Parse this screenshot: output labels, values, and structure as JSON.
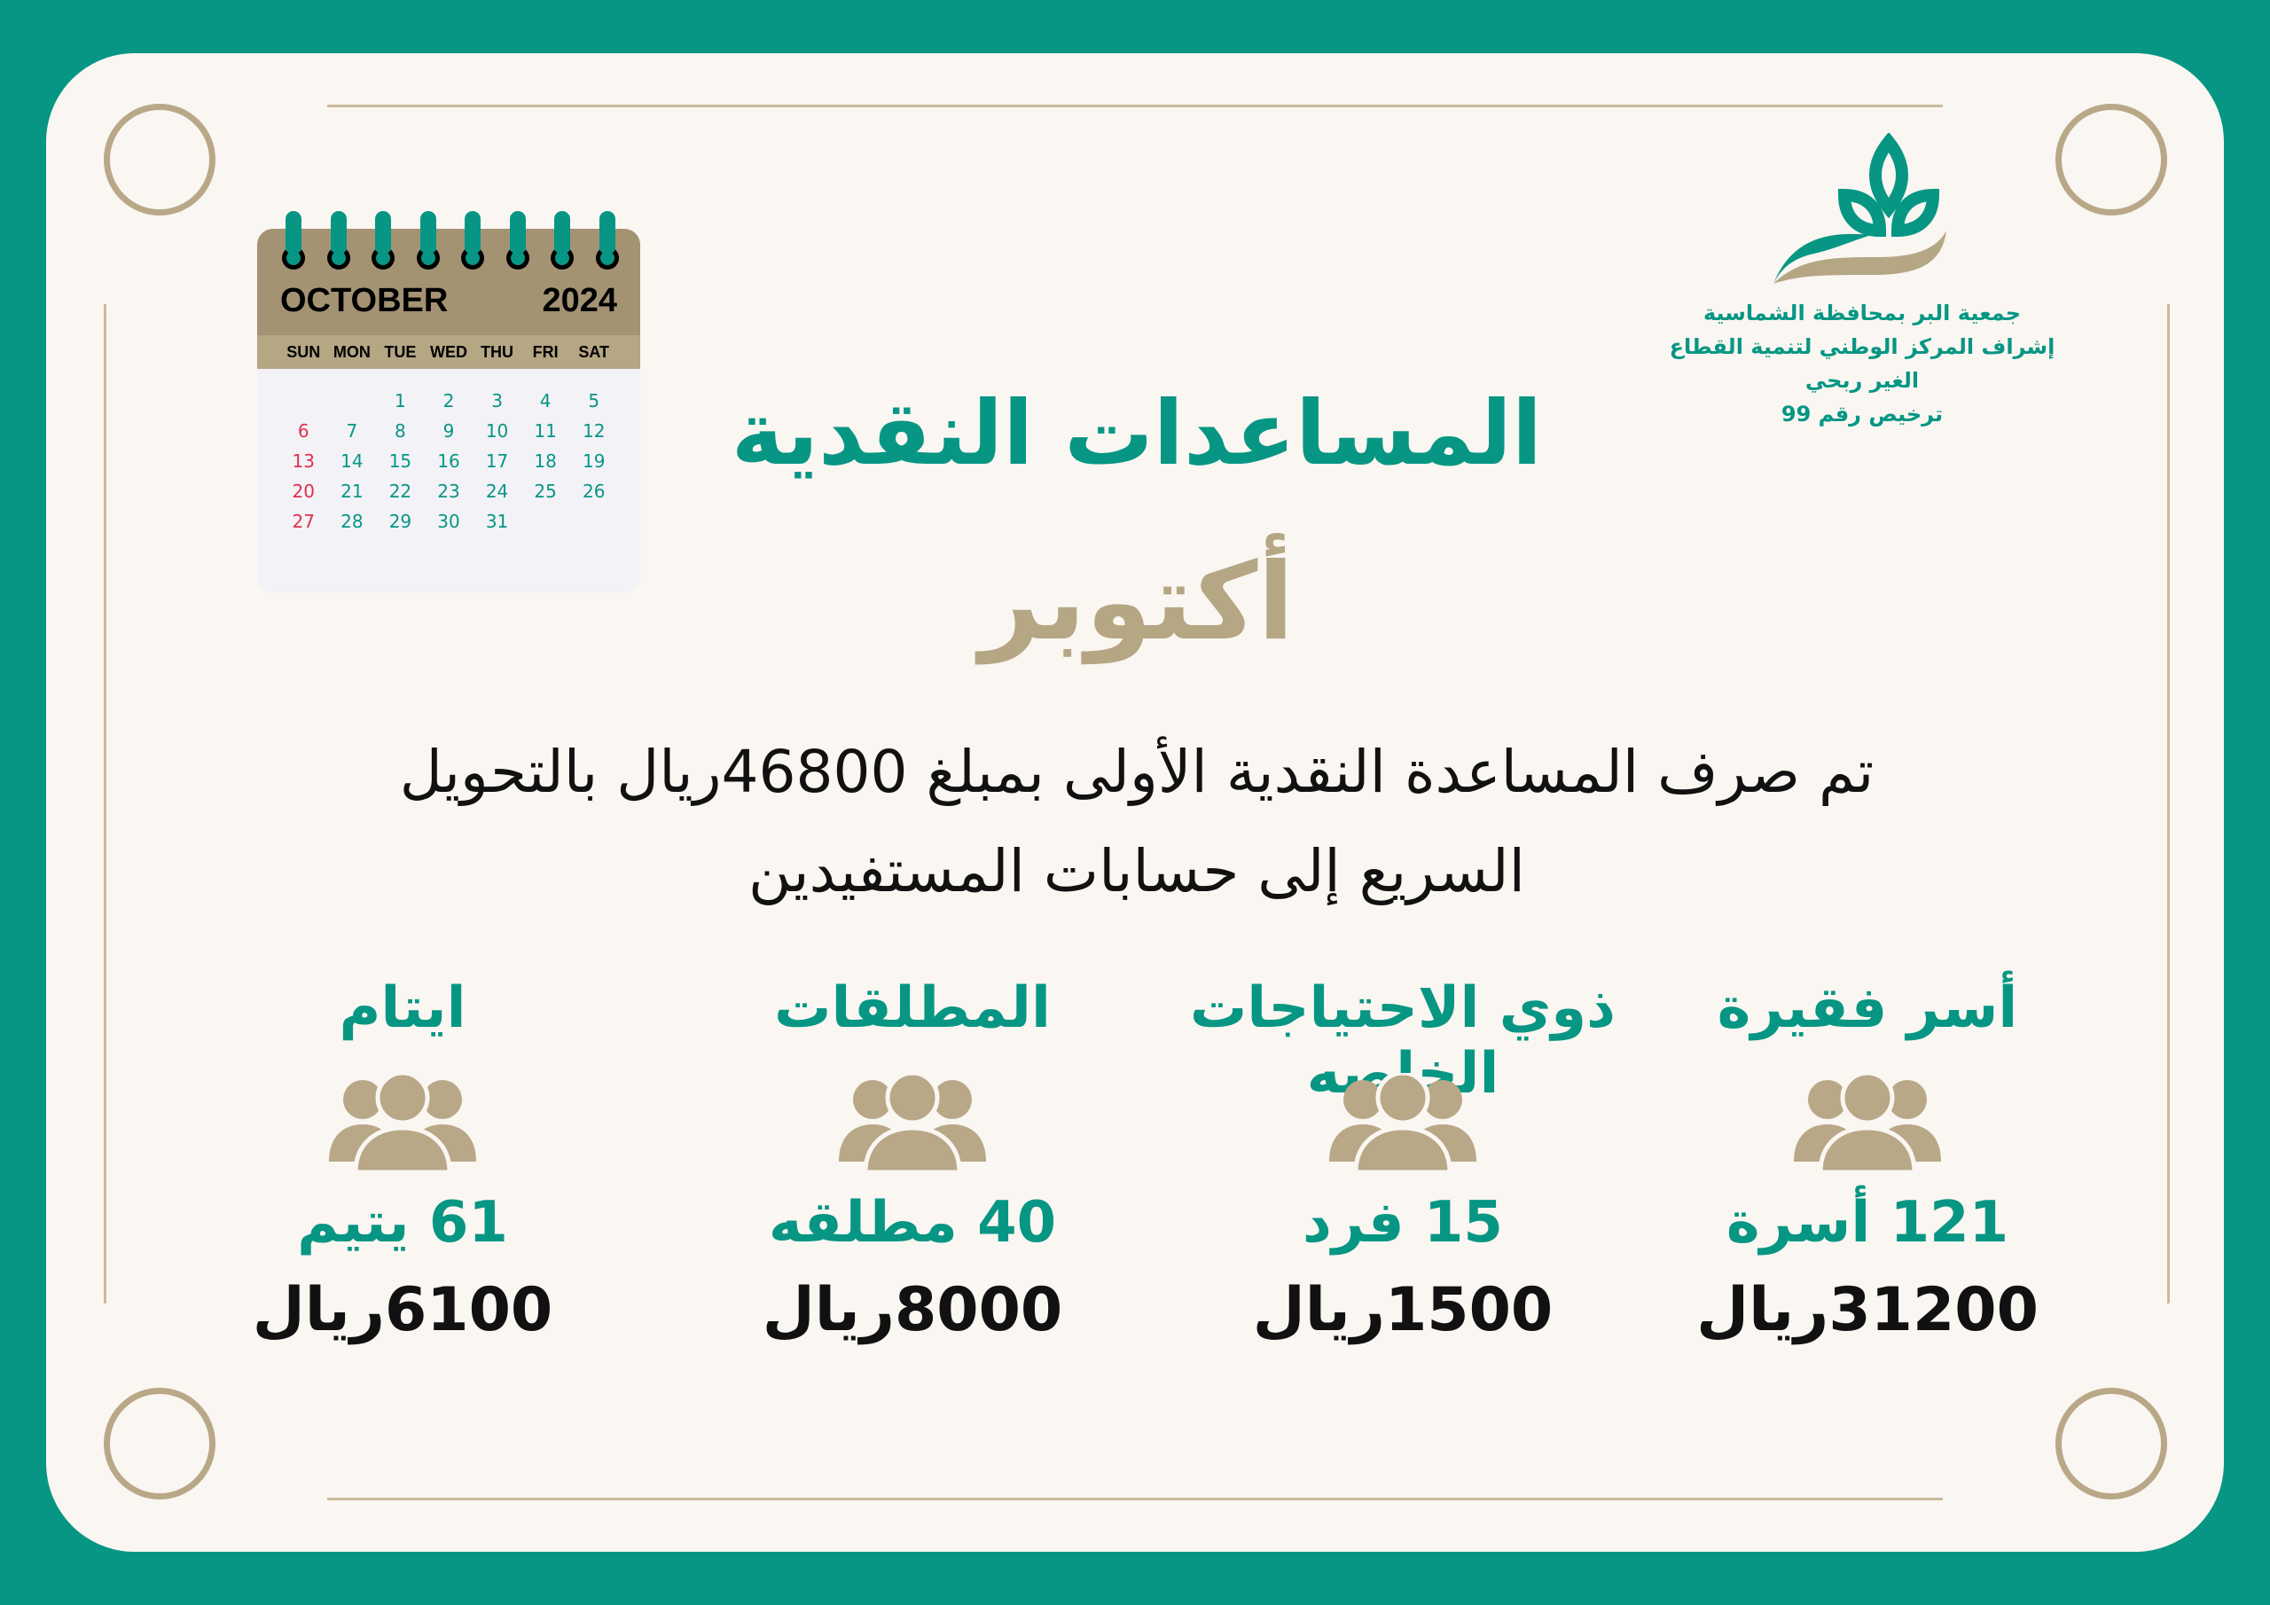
{
  "colors": {
    "teal": "#079684",
    "tan": "#b5a684",
    "cream": "#faf6f1",
    "weekend": "#e0304e"
  },
  "logo": {
    "line1": "جمعية البر بمحافظة الشماسية",
    "line2": "إشراف المركز الوطني لتنمية القطاع الغير ربحي",
    "line3": "ترخيص رقم 99"
  },
  "calendar": {
    "month": "OCTOBER",
    "year": "2024",
    "weekdays": [
      "SUN",
      "MON",
      "TUE",
      "WED",
      "THU",
      "FRI",
      "SAT"
    ],
    "weeks": [
      [
        "",
        "",
        "1",
        "2",
        "3",
        "4",
        "5"
      ],
      [
        "6",
        "7",
        "8",
        "9",
        "10",
        "11",
        "12"
      ],
      [
        "13",
        "14",
        "15",
        "16",
        "17",
        "18",
        "19"
      ],
      [
        "20",
        "21",
        "22",
        "23",
        "24",
        "25",
        "26"
      ],
      [
        "27",
        "28",
        "29",
        "30",
        "31",
        "",
        ""
      ]
    ]
  },
  "title": "المساعدات النقدية",
  "month": "أكتوبر",
  "description": {
    "line1": "تم صرف المساعدة النقدية الأولى بمبلغ 46800ريال بالتحويل",
    "line2": "السريع إلى حسابات المستفيدين"
  },
  "categories": [
    {
      "label": "أسر فقيرة",
      "count": "121 أسرة",
      "amount": "31200ريال",
      "icon": "people-group-icon"
    },
    {
      "label": "ذوي الاحتياجات الخاصه",
      "count": "15 فرد",
      "amount": "1500ريال",
      "icon": "people-group-icon"
    },
    {
      "label": "المطلقات",
      "count": "40 مطلقه",
      "amount": "8000ريال",
      "icon": "people-group-icon"
    },
    {
      "label": "ايتام",
      "count": "61 يتيم",
      "amount": "6100ريال",
      "icon": "people-group-icon"
    }
  ]
}
